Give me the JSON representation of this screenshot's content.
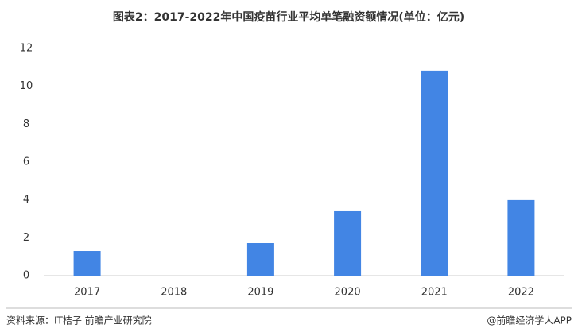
{
  "chart_data": {
    "type": "bar",
    "title": "图表2：2017-2022年中国疫苗行业平均单笔融资额情况(单位：亿元)",
    "categories": [
      "2017",
      "2018",
      "2019",
      "2020",
      "2021",
      "2022"
    ],
    "values": [
      1.3,
      0,
      1.72,
      3.4,
      10.83,
      3.99
    ],
    "color": "#4285e4",
    "ylim": [
      0,
      12
    ],
    "yticks": [
      0,
      2,
      4,
      6,
      8,
      10,
      12
    ],
    "grid": false,
    "source": "资料来源：IT桔子 前瞻产业研究院",
    "credit": "@前瞻经济学人APP"
  }
}
